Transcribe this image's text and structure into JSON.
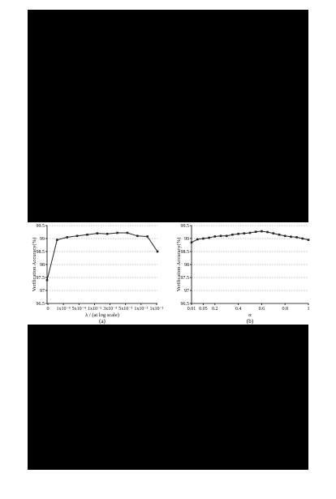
{
  "chart_data": [
    {
      "type": "line",
      "panel_caption": "(a)",
      "xlabel": "λ / (at log scale)",
      "ylabel": "Verification Accuracy(%)",
      "ylim": [
        96.5,
        99.5
      ],
      "y_ticks": [
        "96.5",
        "97",
        "97.5",
        "98",
        "98.5",
        "99",
        "99.5"
      ],
      "grid": "horizontal dotted",
      "x_tick_labels": [
        "0",
        "1x10⁻⁴",
        "5x10⁻⁴",
        "1x10⁻³",
        "3x10⁻³",
        "5x10⁻³",
        "1x10⁻²",
        "1x10⁻¹"
      ],
      "x": [
        "0",
        "1x10⁻⁵",
        "1x10⁻⁴",
        "3x10⁻⁴",
        "5x10⁻⁴",
        "1x10⁻³",
        "3x10⁻³",
        "5x10⁻³",
        "1x10⁻²",
        "3x10⁻²",
        "5x10⁻²",
        "1x10⁻¹"
      ],
      "values": [
        97.4,
        98.95,
        99.05,
        99.1,
        99.15,
        99.2,
        99.18,
        99.22,
        99.22,
        99.1,
        99.08,
        98.5
      ]
    },
    {
      "type": "line",
      "panel_caption": "(b)",
      "xlabel": "α",
      "ylabel": "Verification Accuracy(%)",
      "ylim": [
        96.5,
        99.5
      ],
      "xlim": [
        0,
        1
      ],
      "y_ticks": [
        "96.5",
        "97",
        "97.5",
        "98",
        "98.5",
        "99",
        "99.5"
      ],
      "x_ticks": [
        "0.01",
        "0.05",
        "0.2",
        "0.4",
        "0.6",
        "0.8",
        "1"
      ],
      "grid": "horizontal dotted",
      "x": [
        0.0,
        0.05,
        0.1,
        0.15,
        0.2,
        0.25,
        0.3,
        0.35,
        0.4,
        0.45,
        0.5,
        0.55,
        0.6,
        0.65,
        0.7,
        0.75,
        0.8,
        0.85,
        0.9,
        0.95,
        1.0
      ],
      "values": [
        98.85,
        98.97,
        99.0,
        99.03,
        99.08,
        99.1,
        99.1,
        99.15,
        99.18,
        99.2,
        99.22,
        99.26,
        99.28,
        99.25,
        99.2,
        99.15,
        99.1,
        99.07,
        99.05,
        99.0,
        98.95
      ]
    }
  ]
}
